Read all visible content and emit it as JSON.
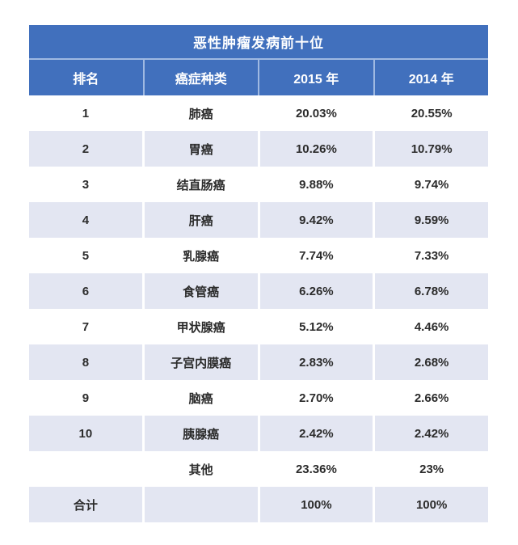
{
  "table": {
    "title": "恶性肿瘤发病前十位",
    "columns": {
      "rank": "排名",
      "type": "癌症种类",
      "y2015": "2015 年",
      "y2014": "2014 年"
    },
    "rows": [
      {
        "rank": "1",
        "type": "肺癌",
        "y2015": "20.03%",
        "y2014": "20.55%"
      },
      {
        "rank": "2",
        "type": "胃癌",
        "y2015": "10.26%",
        "y2014": "10.79%"
      },
      {
        "rank": "3",
        "type": "结直肠癌",
        "y2015": "9.88%",
        "y2014": "9.74%"
      },
      {
        "rank": "4",
        "type": "肝癌",
        "y2015": "9.42%",
        "y2014": "9.59%"
      },
      {
        "rank": "5",
        "type": "乳腺癌",
        "y2015": "7.74%",
        "y2014": "7.33%"
      },
      {
        "rank": "6",
        "type": "食管癌",
        "y2015": "6.26%",
        "y2014": "6.78%"
      },
      {
        "rank": "7",
        "type": "甲状腺癌",
        "y2015": "5.12%",
        "y2014": "4.46%"
      },
      {
        "rank": "8",
        "type": "子宫内膜癌",
        "y2015": "2.83%",
        "y2014": "2.68%"
      },
      {
        "rank": "9",
        "type": "脑癌",
        "y2015": "2.70%",
        "y2014": "2.66%"
      },
      {
        "rank": "10",
        "type": "胰腺癌",
        "y2015": "2.42%",
        "y2014": "2.42%"
      },
      {
        "rank": "",
        "type": "其他",
        "y2015": "23.36%",
        "y2014": "23%"
      },
      {
        "rank": "合计",
        "type": "",
        "y2015": "100%",
        "y2014": "100%"
      }
    ]
  },
  "colors": {
    "header_blue": "#4170bd",
    "header_divider": "#9fb9e2",
    "row_alt": "#e3e6f2",
    "row_default": "#ffffff",
    "text_dark": "#2c2c2c",
    "text_light": "#ffffff"
  },
  "chart_data": {
    "type": "table",
    "title": "恶性肿瘤发病前十位",
    "columns": [
      "排名",
      "癌症种类",
      "2015 年",
      "2014 年"
    ],
    "rows": [
      [
        "1",
        "肺癌",
        "20.03%",
        "20.55%"
      ],
      [
        "2",
        "胃癌",
        "10.26%",
        "10.79%"
      ],
      [
        "3",
        "结直肠癌",
        "9.88%",
        "9.74%"
      ],
      [
        "4",
        "肝癌",
        "9.42%",
        "9.59%"
      ],
      [
        "5",
        "乳腺癌",
        "7.74%",
        "7.33%"
      ],
      [
        "6",
        "食管癌",
        "6.26%",
        "6.78%"
      ],
      [
        "7",
        "甲状腺癌",
        "5.12%",
        "4.46%"
      ],
      [
        "8",
        "子宫内膜癌",
        "2.83%",
        "2.68%"
      ],
      [
        "9",
        "脑癌",
        "2.70%",
        "2.66%"
      ],
      [
        "10",
        "胰腺癌",
        "2.42%",
        "2.42%"
      ],
      [
        "",
        "其他",
        "23.36%",
        "23%"
      ],
      [
        "合计",
        "",
        "100%",
        "100%"
      ]
    ]
  }
}
